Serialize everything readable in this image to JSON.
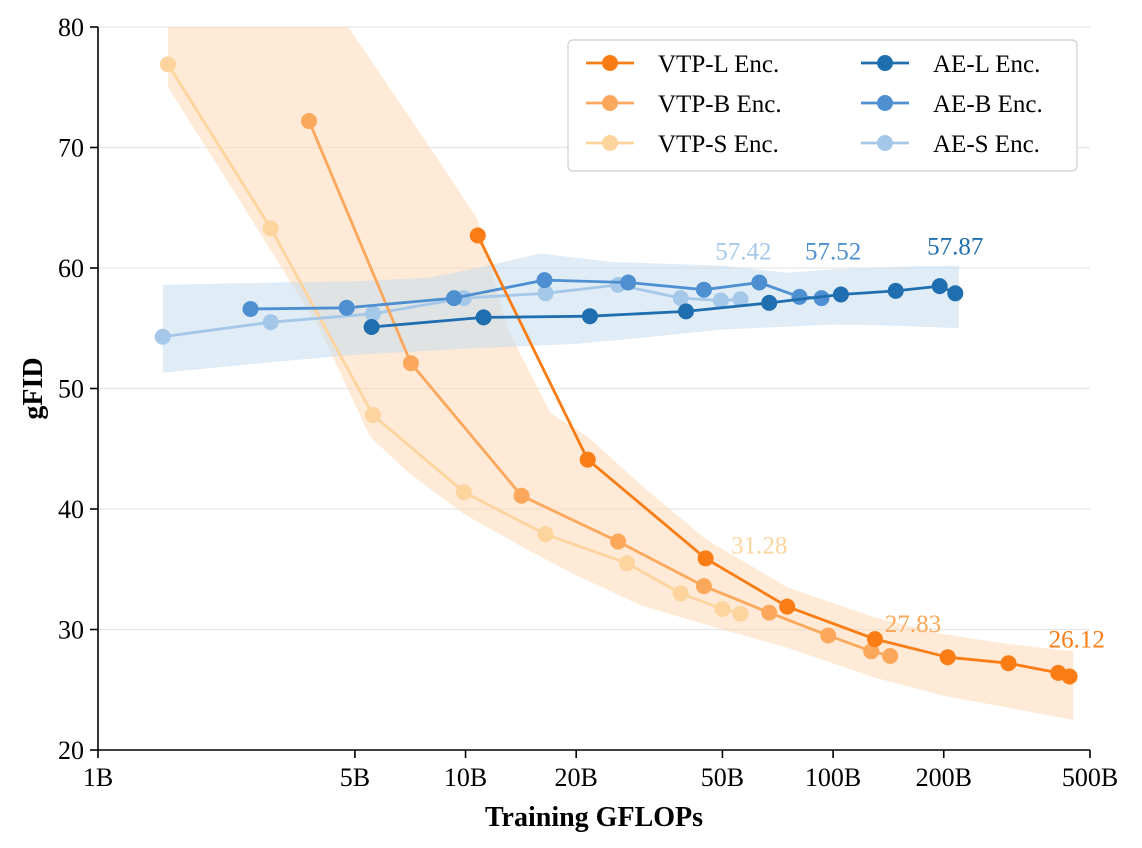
{
  "chart_data": {
    "type": "line",
    "xlabel": "Training GFLOPs",
    "ylabel": "gFID",
    "xscale": "log",
    "xlim": [
      1,
      500
    ],
    "ylim": [
      20,
      80
    ],
    "xticks": [
      {
        "value": 1,
        "label": "1B"
      },
      {
        "value": 5,
        "label": "5B"
      },
      {
        "value": 10,
        "label": "10B"
      },
      {
        "value": 20,
        "label": "20B"
      },
      {
        "value": 50,
        "label": "50B"
      },
      {
        "value": 100,
        "label": "100B"
      },
      {
        "value": 200,
        "label": "200B"
      },
      {
        "value": 500,
        "label": "500B"
      }
    ],
    "yticks": [
      20,
      30,
      40,
      50,
      60,
      70,
      80
    ],
    "grid": "horizontal",
    "legend_position": "top-right",
    "legend_columns": 2,
    "bands": [
      {
        "name": "VTP band",
        "color": "#fdd9b5",
        "opacity": 0.55,
        "upper": [
          [
            1.55,
            80
          ],
          [
            4.8,
            80
          ],
          [
            8,
            70
          ],
          [
            10.8,
            64
          ],
          [
            13,
            55
          ],
          [
            17,
            48
          ],
          [
            21.5,
            46
          ],
          [
            30,
            42
          ],
          [
            45,
            37.5
          ],
          [
            75,
            33.5
          ],
          [
            130,
            31
          ],
          [
            200,
            29.6
          ],
          [
            300,
            28.8
          ],
          [
            450,
            28.2
          ]
        ],
        "lower": [
          [
            450,
            22.5
          ],
          [
            300,
            23.5
          ],
          [
            200,
            24.5
          ],
          [
            130,
            26
          ],
          [
            75,
            28.5
          ],
          [
            50,
            30
          ],
          [
            30,
            32
          ],
          [
            20,
            34.5
          ],
          [
            15,
            36.5
          ],
          [
            10,
            39.5
          ],
          [
            7,
            43
          ],
          [
            5.5,
            46
          ],
          [
            4,
            55
          ],
          [
            2.5,
            65
          ],
          [
            1.55,
            75
          ]
        ]
      },
      {
        "name": "AE band",
        "color": "#c6dcef",
        "opacity": 0.55,
        "upper": [
          [
            1.5,
            58.6
          ],
          [
            3,
            58.8
          ],
          [
            5,
            58.9
          ],
          [
            8,
            59.2
          ],
          [
            10,
            59.8
          ],
          [
            16,
            61.2
          ],
          [
            25,
            60.5
          ],
          [
            50,
            60.2
          ],
          [
            75,
            59.6
          ],
          [
            100,
            59.9
          ],
          [
            150,
            60.1
          ],
          [
            220,
            60.2
          ]
        ],
        "lower": [
          [
            220,
            55
          ],
          [
            150,
            55.2
          ],
          [
            100,
            55.3
          ],
          [
            50,
            54.9
          ],
          [
            30,
            54.2
          ],
          [
            20,
            53.7
          ],
          [
            10,
            53.3
          ],
          [
            5,
            52.8
          ],
          [
            3,
            52.2
          ],
          [
            1.5,
            51.3
          ]
        ]
      }
    ],
    "series": [
      {
        "name": "VTP-L Enc.",
        "color": "#f97c14",
        "x": [
          10.8,
          21.5,
          45,
          75,
          130,
          205,
          300,
          410,
          440
        ],
        "y": [
          62.7,
          44.1,
          35.9,
          31.9,
          29.2,
          27.7,
          27.2,
          26.4,
          26.1
        ]
      },
      {
        "name": "VTP-B Enc.",
        "color": "#fba85c",
        "x": [
          3.75,
          7.1,
          14.2,
          26,
          44.5,
          67,
          97,
          127,
          143
        ],
        "y": [
          72.2,
          52.1,
          41.1,
          37.3,
          33.6,
          31.4,
          29.5,
          28.2,
          27.8
        ]
      },
      {
        "name": "VTP-S Enc.",
        "color": "#fdd49e",
        "x": [
          1.55,
          2.95,
          5.6,
          9.9,
          16.5,
          27.5,
          38.5,
          50,
          56
        ],
        "y": [
          76.9,
          63.3,
          47.8,
          41.4,
          37.9,
          35.5,
          33.0,
          31.7,
          31.3
        ]
      },
      {
        "name": "AE-L Enc.",
        "color": "#1f6fb0",
        "x": [
          5.55,
          11.2,
          21.8,
          39.8,
          67,
          105,
          148,
          195,
          215
        ],
        "y": [
          55.1,
          55.9,
          56.0,
          56.4,
          57.1,
          57.8,
          58.1,
          58.5,
          57.9
        ]
      },
      {
        "name": "AE-B Enc.",
        "color": "#4d8fd0",
        "x": [
          2.6,
          4.75,
          9.3,
          16.4,
          27.7,
          44.5,
          63,
          81,
          93
        ],
        "y": [
          56.6,
          56.7,
          57.5,
          59.0,
          58.8,
          58.2,
          58.8,
          57.6,
          57.5
        ]
      },
      {
        "name": "AE-S Enc.",
        "color": "#a5c8e8",
        "x": [
          1.5,
          2.95,
          5.6,
          9.9,
          16.5,
          26,
          38.5,
          49.5,
          56
        ],
        "y": [
          54.3,
          55.5,
          56.2,
          57.5,
          57.9,
          58.6,
          57.5,
          57.3,
          57.4
        ]
      }
    ],
    "annotations": [
      {
        "text": "57.42",
        "color": "#a5c8e8",
        "x": 57,
        "y": 60.7
      },
      {
        "text": "57.52",
        "color": "#4d8fd0",
        "x": 100,
        "y": 60.7
      },
      {
        "text": "57.87",
        "color": "#1f6fb0",
        "x": 215,
        "y": 61.1
      },
      {
        "text": "31.28",
        "color": "#fdd49e",
        "x": 63,
        "y": 36.3
      },
      {
        "text": "27.83",
        "color": "#fba85c",
        "x": 165,
        "y": 29.8
      },
      {
        "text": "26.12",
        "color": "#f97c14",
        "x": 460,
        "y": 28.5
      }
    ]
  }
}
